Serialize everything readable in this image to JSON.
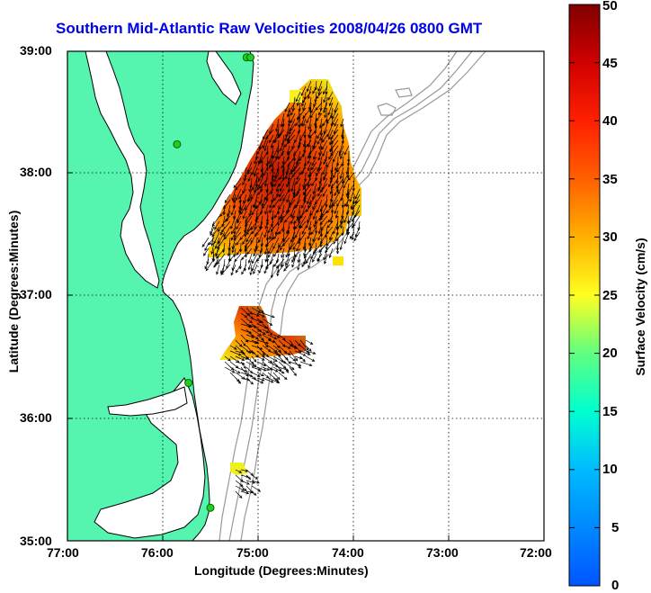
{
  "title": "Southern Mid-Atlantic Raw Velocities 2008/04/26 0800 GMT",
  "axes": {
    "xlabel": "Longitude (Degrees:Minutes)",
    "ylabel": "Latitude (Degrees:Minutes)",
    "xticks": [
      "77:00",
      "76:00",
      "75:00",
      "74:00",
      "73:00",
      "72:00"
    ],
    "yticks": [
      "39:00",
      "38:00",
      "37:00",
      "36:00",
      "35:00"
    ],
    "xrange_deg_west": [
      77,
      72
    ],
    "yrange_deg_north": [
      35,
      39
    ],
    "grid": "dotted"
  },
  "colorbar": {
    "label": "Surface Velocity (cm/s)",
    "ticks": [
      "0",
      "5",
      "10",
      "15",
      "20",
      "25",
      "30",
      "35",
      "40",
      "45",
      "50"
    ],
    "range": [
      0,
      50
    ],
    "colormap": "jet"
  },
  "colors": {
    "land": "#55f5b0",
    "coastline": "#000000",
    "bathymetry": "#999999",
    "station_marker": "#22cc22",
    "title": "#0000e6"
  },
  "stations_lonlat": [
    [
      -75.12,
      38.95
    ],
    [
      -75.08,
      38.95
    ],
    [
      -75.85,
      38.24
    ],
    [
      -75.73,
      36.29
    ],
    [
      -75.5,
      35.27
    ]
  ]
}
